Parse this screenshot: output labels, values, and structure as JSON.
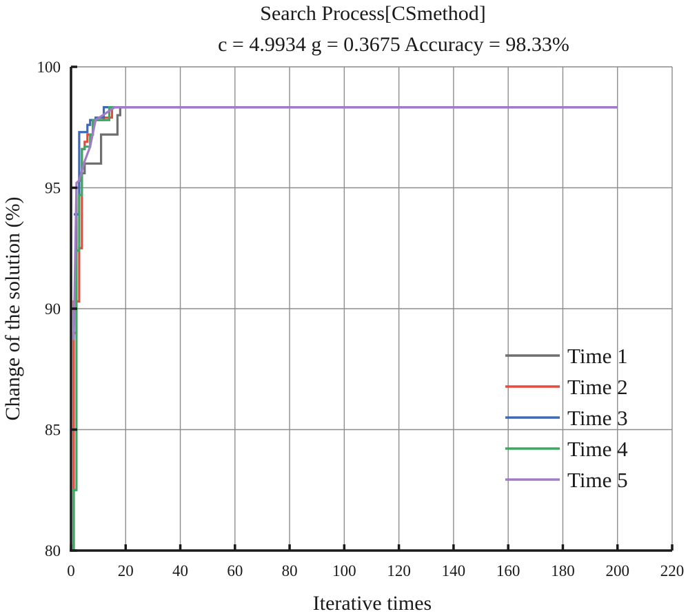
{
  "chart_data": {
    "type": "line",
    "title": "Search Process[CSmethod]",
    "subtitle": "c = 4.9934 g = 0.3675 Accuracy = 98.33%",
    "xlabel": "Iterative times",
    "ylabel": "Change of the solution (%)",
    "xlim": [
      0,
      220
    ],
    "ylim": [
      80,
      100
    ],
    "xticks": [
      0,
      20,
      40,
      60,
      80,
      100,
      120,
      140,
      160,
      180,
      200,
      220
    ],
    "yticks": [
      80,
      85,
      90,
      95,
      100
    ],
    "grid": true,
    "legend_position": "lower-right",
    "series": [
      {
        "name": "Time 1",
        "color": "#6f6f6f",
        "x": [
          1,
          1,
          2,
          2,
          3,
          3,
          4,
          4,
          5,
          5,
          11,
          11,
          17,
          17,
          18,
          18,
          200
        ],
        "y": [
          80,
          89.0,
          89.0,
          95.0,
          95.0,
          95.3,
          95.3,
          95.6,
          95.6,
          96.0,
          96.0,
          97.2,
          97.2,
          98.0,
          98.0,
          98.33,
          98.33
        ]
      },
      {
        "name": "Time 2",
        "color": "#e64a3c",
        "x": [
          1,
          1,
          2,
          2,
          3,
          3,
          4,
          4,
          5,
          5,
          6,
          6,
          8,
          8,
          12,
          12,
          15,
          15,
          200
        ],
        "y": [
          80,
          90.3,
          90.3,
          90.3,
          90.3,
          92.5,
          92.5,
          96.6,
          96.6,
          96.9,
          96.9,
          97.2,
          97.2,
          97.8,
          97.8,
          97.9,
          97.9,
          98.33,
          98.33
        ]
      },
      {
        "name": "Time 3",
        "color": "#3d6ab8",
        "x": [
          1,
          1,
          3,
          3,
          6,
          6,
          7,
          7,
          9,
          9,
          12,
          12,
          200
        ],
        "y": [
          93.9,
          93.9,
          93.9,
          97.3,
          97.3,
          97.6,
          97.6,
          97.8,
          97.8,
          97.9,
          97.9,
          98.33,
          98.33
        ]
      },
      {
        "name": "Time 4",
        "color": "#3aaa62",
        "x": [
          1,
          1,
          2,
          2,
          3,
          3,
          4,
          4,
          5,
          5,
          7,
          7,
          8,
          8,
          14,
          14,
          200
        ],
        "y": [
          80,
          82.5,
          82.5,
          92.4,
          92.4,
          94.7,
          94.7,
          96.6,
          96.6,
          96.7,
          96.7,
          97.2,
          97.2,
          97.8,
          97.8,
          98.33,
          98.33
        ]
      },
      {
        "name": "Time 5",
        "color": "#a07cc6",
        "x": [
          1,
          1,
          2,
          2,
          3,
          3,
          4,
          4,
          5,
          5,
          7,
          7,
          9,
          9,
          16,
          16,
          200
        ],
        "y": [
          88.7,
          88.7,
          95.2,
          95.2,
          95.3,
          95.3,
          95.7,
          95.7,
          96.1,
          96.1,
          96.7,
          96.7,
          97.8,
          97.8,
          98.33,
          98.33,
          98.33
        ]
      }
    ]
  }
}
